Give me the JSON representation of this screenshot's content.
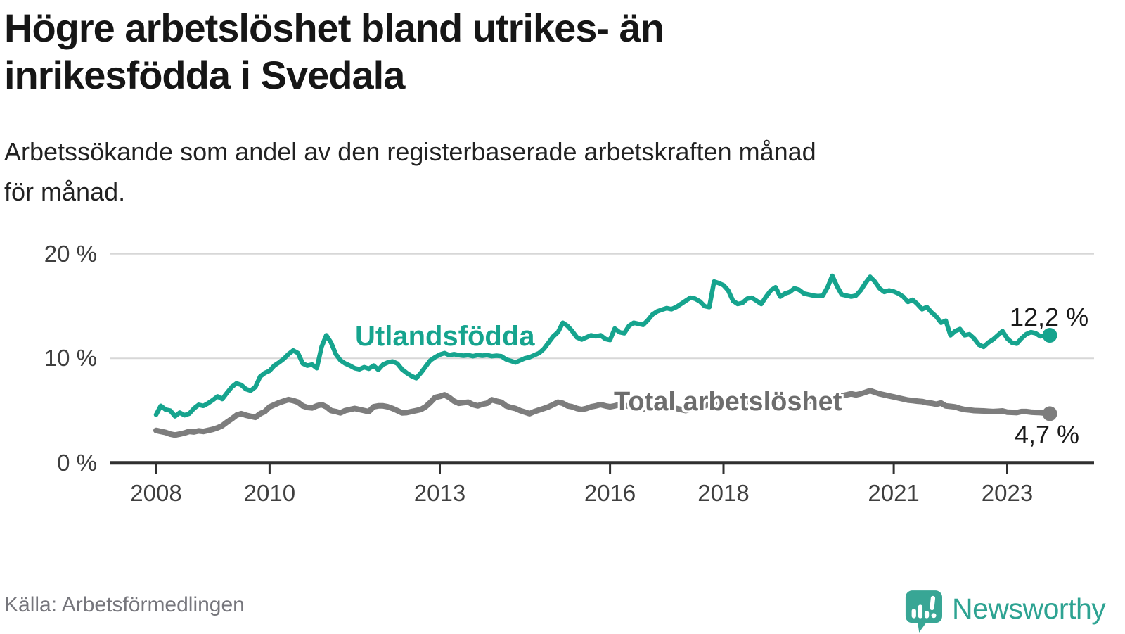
{
  "header": {
    "title_line1": "Högre arbetslöshet bland utrikes- än",
    "title_line2": "inrikesfödda i Svedala",
    "subtitle_line1": "Arbetssökande som andel av den registerbaserade arbetskraften månad",
    "subtitle_line2": "för månad."
  },
  "footer": {
    "source": "Källa: Arbetsförmedlingen",
    "brand": "Newsworthy"
  },
  "colors": {
    "teal_line": "#16a48e",
    "gray_line": "#7d7d7d",
    "teal_label": "#16a48e",
    "gray_label": "#6d6d6d",
    "gridline": "#d7d7d7",
    "axis": "#2f2f2f",
    "logo": "#38a695",
    "annotation": "#1a1a1a"
  },
  "chart_data": {
    "type": "line",
    "title": "Högre arbetslöshet bland utrikes- än inrikesfödda i Svedala",
    "subtitle": "Arbetssökande som andel av den registerbaserade arbetskraften månad för månad.",
    "xlabel": "",
    "ylabel": "",
    "x_start": "2008-01",
    "x_end": "2023-10",
    "frequency": "monthly",
    "ylim": [
      0,
      20
    ],
    "grid": "horizontal",
    "legend_position": "inline-labels",
    "yticks": [
      {
        "label": "0 %",
        "value": 0
      },
      {
        "label": "10 %",
        "value": 10
      },
      {
        "label": "20 %",
        "value": 20
      }
    ],
    "xticks": [
      {
        "label": "2008",
        "year": 2008
      },
      {
        "label": "2010",
        "year": 2010
      },
      {
        "label": "2013",
        "year": 2013
      },
      {
        "label": "2016",
        "year": 2016
      },
      {
        "label": "2018",
        "year": 2018
      },
      {
        "label": "2021",
        "year": 2021
      },
      {
        "label": "2023",
        "year": 2023
      }
    ],
    "series": [
      {
        "name": "Utlandsfödda",
        "color": "#16a48e",
        "end_label": "12,2 %",
        "end_value": 12.2,
        "values": [
          4.6,
          5.45,
          5.1,
          5.0,
          4.45,
          4.8,
          4.55,
          4.7,
          5.2,
          5.55,
          5.45,
          5.7,
          6.0,
          6.35,
          6.1,
          6.7,
          7.25,
          7.6,
          7.45,
          7.05,
          6.9,
          7.25,
          8.25,
          8.6,
          8.8,
          9.3,
          9.6,
          9.95,
          10.4,
          10.75,
          10.5,
          9.5,
          9.3,
          9.4,
          9.05,
          11.1,
          12.2,
          11.5,
          10.4,
          9.8,
          9.5,
          9.3,
          9.05,
          8.95,
          9.15,
          9.0,
          9.3,
          8.9,
          9.4,
          9.6,
          9.7,
          9.5,
          8.95,
          8.6,
          8.3,
          8.1,
          8.6,
          9.2,
          9.8,
          10.1,
          10.35,
          10.5,
          10.3,
          10.4,
          10.3,
          10.25,
          10.3,
          10.2,
          10.3,
          10.25,
          10.3,
          10.2,
          10.25,
          10.2,
          9.9,
          9.75,
          9.6,
          9.8,
          10.0,
          10.1,
          10.3,
          10.5,
          10.9,
          11.5,
          12.1,
          12.5,
          13.4,
          13.1,
          12.6,
          12.0,
          11.8,
          12.0,
          12.2,
          12.1,
          12.2,
          11.85,
          11.75,
          12.85,
          12.5,
          12.4,
          13.1,
          13.4,
          13.3,
          13.2,
          13.65,
          14.2,
          14.5,
          14.65,
          14.8,
          14.7,
          14.9,
          15.2,
          15.5,
          15.8,
          15.7,
          15.45,
          15.0,
          14.9,
          17.35,
          17.2,
          17.0,
          16.5,
          15.5,
          15.2,
          15.3,
          15.7,
          15.8,
          15.5,
          15.2,
          15.9,
          16.5,
          16.8,
          15.9,
          16.2,
          16.35,
          16.7,
          16.55,
          16.2,
          16.1,
          16.0,
          15.95,
          16.0,
          16.8,
          17.9,
          16.9,
          16.1,
          16.0,
          15.9,
          16.0,
          16.5,
          17.2,
          17.8,
          17.35,
          16.7,
          16.35,
          16.5,
          16.4,
          16.2,
          15.9,
          15.4,
          15.6,
          15.2,
          14.7,
          14.9,
          14.4,
          14.0,
          13.4,
          13.6,
          12.2,
          12.6,
          12.8,
          12.2,
          12.3,
          11.9,
          11.3,
          11.1,
          11.5,
          11.8,
          12.2,
          12.6,
          11.9,
          11.5,
          11.4,
          11.9,
          12.3,
          12.5,
          12.4,
          12.1,
          12.2,
          12.2
        ]
      },
      {
        "name": "Total arbetslöshet",
        "color": "#7d7d7d",
        "end_label": "4,7 %",
        "end_value": 4.7,
        "values": [
          3.1,
          3.0,
          2.9,
          2.75,
          2.65,
          2.75,
          2.85,
          3.0,
          2.95,
          3.05,
          3.0,
          3.1,
          3.2,
          3.35,
          3.55,
          3.9,
          4.2,
          4.55,
          4.7,
          4.55,
          4.45,
          4.35,
          4.7,
          4.9,
          5.35,
          5.55,
          5.75,
          5.9,
          6.05,
          5.95,
          5.8,
          5.45,
          5.3,
          5.25,
          5.45,
          5.57,
          5.36,
          5.0,
          4.9,
          4.78,
          5.0,
          5.1,
          5.2,
          5.1,
          5.0,
          4.9,
          5.36,
          5.45,
          5.45,
          5.36,
          5.2,
          5.0,
          4.78,
          4.8,
          4.9,
          5.0,
          5.1,
          5.36,
          5.77,
          6.25,
          6.35,
          6.5,
          6.25,
          5.9,
          5.7,
          5.75,
          5.8,
          5.57,
          5.45,
          5.6,
          5.7,
          6.03,
          5.9,
          5.8,
          5.45,
          5.3,
          5.2,
          5.0,
          4.85,
          4.7,
          4.9,
          5.05,
          5.2,
          5.36,
          5.57,
          5.8,
          5.7,
          5.45,
          5.36,
          5.2,
          5.1,
          5.2,
          5.36,
          5.45,
          5.57,
          5.45,
          5.36,
          5.45,
          5.57,
          5.5,
          5.4,
          5.3,
          5.2,
          5.1,
          5.15,
          5.25,
          5.35,
          5.45,
          5.45,
          5.3,
          5.2,
          5.1,
          5.0,
          5.1,
          5.2,
          5.3,
          5.45,
          5.6,
          5.75,
          5.9,
          5.9,
          5.8,
          5.7,
          5.75,
          5.8,
          5.9,
          5.8,
          5.7,
          5.75,
          5.85,
          5.9,
          6.0,
          6.1,
          6.0,
          5.9,
          6.0,
          6.1,
          6.0,
          5.9,
          5.95,
          6.05,
          6.1,
          6.2,
          6.3,
          6.3,
          6.4,
          6.5,
          6.6,
          6.5,
          6.6,
          6.75,
          6.9,
          6.75,
          6.6,
          6.5,
          6.4,
          6.3,
          6.2,
          6.1,
          6.0,
          5.95,
          5.9,
          5.86,
          5.75,
          5.7,
          5.6,
          5.72,
          5.45,
          5.4,
          5.35,
          5.2,
          5.1,
          5.05,
          5.0,
          4.98,
          4.96,
          4.93,
          4.9,
          4.93,
          4.96,
          4.85,
          4.83,
          4.8,
          4.9,
          4.9,
          4.85,
          4.82,
          4.8,
          4.75,
          4.7
        ]
      }
    ]
  }
}
